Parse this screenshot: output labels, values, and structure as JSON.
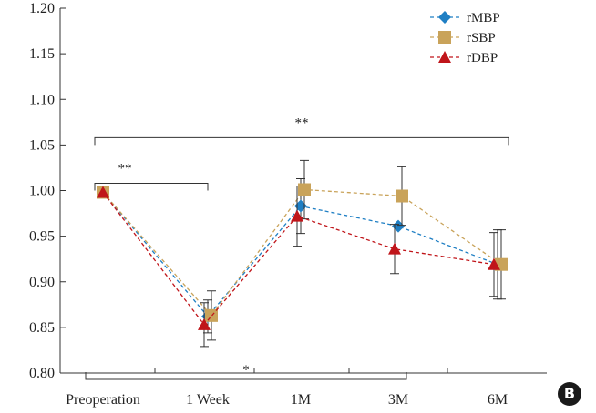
{
  "panel_label": "B",
  "chart_data": {
    "type": "line",
    "categories": [
      "Preoperation",
      "1 Week",
      "1M",
      "3M",
      "6M"
    ],
    "ylim": [
      0.8,
      1.2
    ],
    "yticks": [
      "0.80",
      "0.85",
      "0.90",
      "0.95",
      "1.00",
      "1.05",
      "1.10",
      "1.15",
      "1.20"
    ],
    "grid": false,
    "legend_position": "top-right",
    "series": [
      {
        "name": "rMBP",
        "color": "#1f7fc4",
        "marker": "diamond",
        "values": [
          0.998,
          0.862,
          0.983,
          0.961,
          0.919
        ],
        "errors": [
          0,
          0.018,
          0.03,
          0,
          0.038
        ]
      },
      {
        "name": "rSBP",
        "color": "#c9a35a",
        "marker": "square",
        "values": [
          0.998,
          0.863,
          1.001,
          0.994,
          0.919
        ],
        "errors": [
          0,
          0.027,
          0.032,
          0.032,
          0.038
        ]
      },
      {
        "name": "rDBP",
        "color": "#c0151a",
        "marker": "triangle",
        "values": [
          0.998,
          0.853,
          0.972,
          0.936,
          0.919
        ],
        "errors": [
          0,
          0.024,
          0.033,
          0.027,
          0.035
        ]
      }
    ],
    "annotations": [
      {
        "text": "**",
        "from": 0,
        "to": 1,
        "y": 1.008
      },
      {
        "text": "**",
        "from": 0,
        "to": 4,
        "y": 1.058
      },
      {
        "text": "*",
        "from": 0,
        "to": 3,
        "y": 0.793,
        "below": true
      }
    ]
  }
}
